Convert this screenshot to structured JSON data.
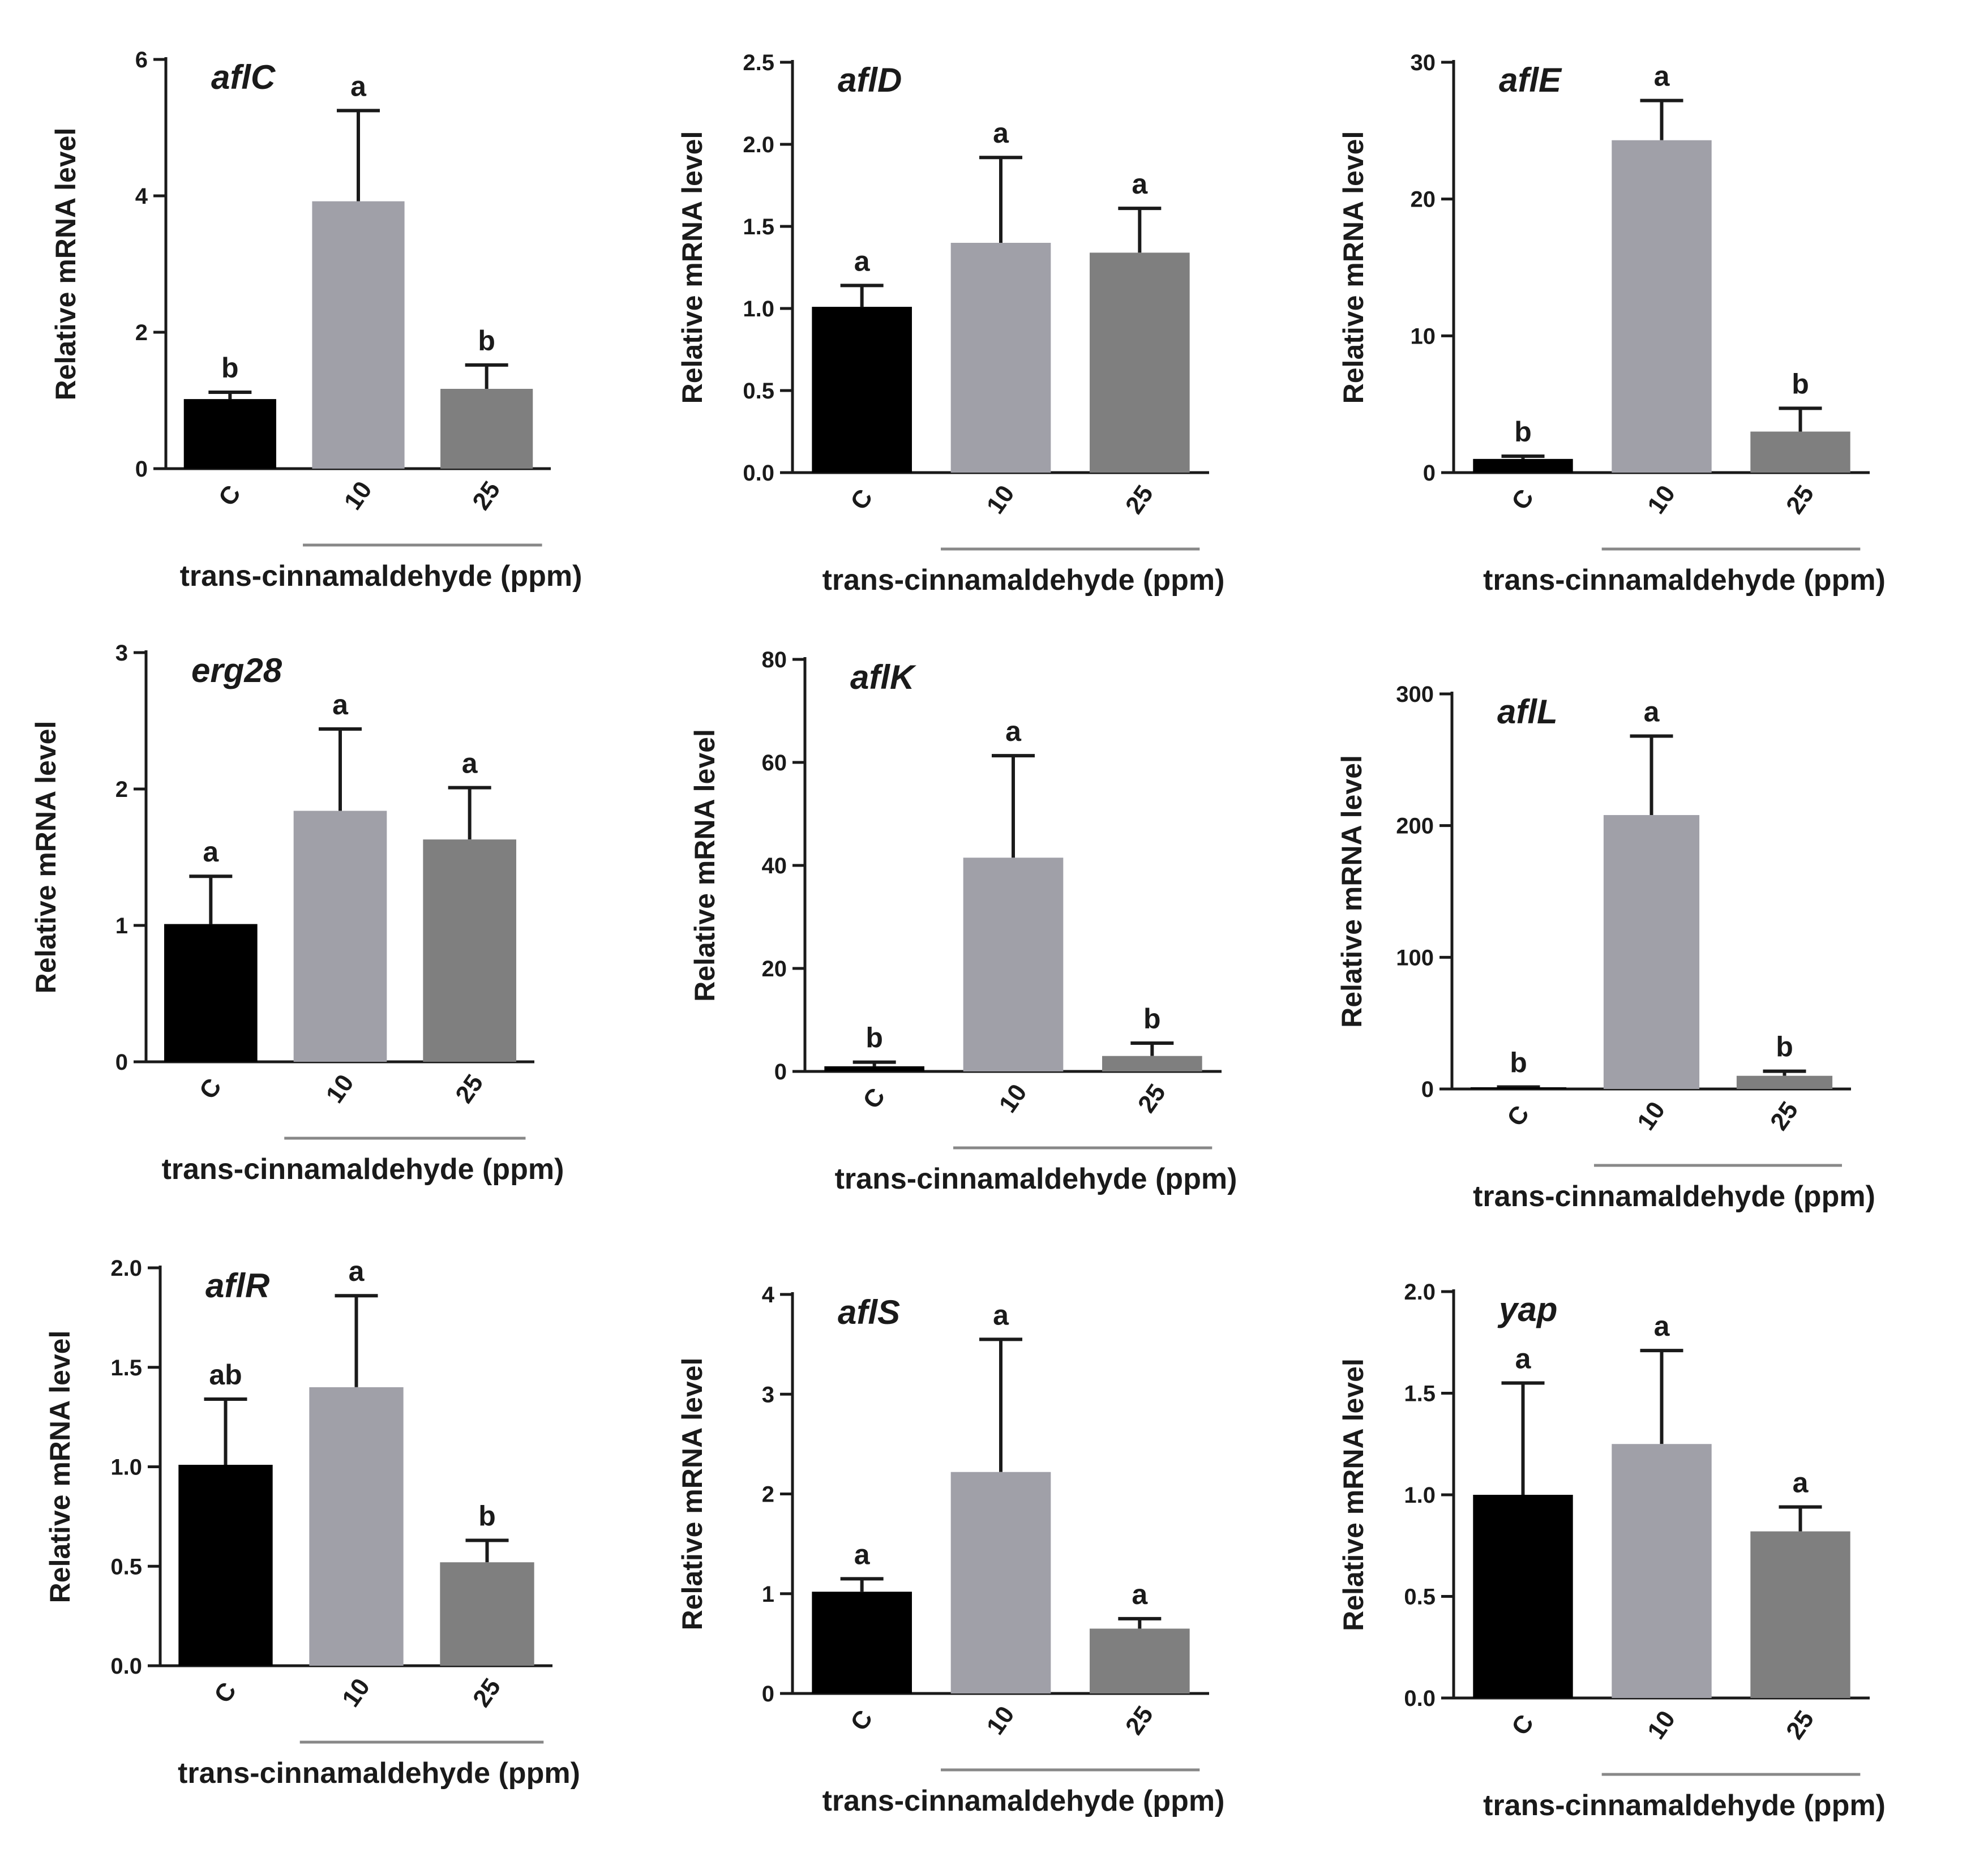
{
  "colors": {
    "C": "#000000",
    "10": "#a0a0a8",
    "25": "#7f7f7f",
    "axis": "#1a1a1a",
    "bracket": "#888888"
  },
  "chart_data": [
    {
      "type": "bar",
      "title": "aflC",
      "ylabel": "Relative mRNA level",
      "xlabel": "trans-cinnamaldehyde (ppm)",
      "categories": [
        "C",
        "10",
        "25"
      ],
      "values": [
        1.02,
        3.92,
        1.17
      ],
      "errors": [
        0.1,
        1.33,
        0.35
      ],
      "significance": [
        "b",
        "a",
        "b"
      ],
      "ylim": [
        0,
        6
      ],
      "yticks": [
        "0",
        "2",
        "4",
        "6"
      ]
    },
    {
      "type": "bar",
      "title": "aflD",
      "ylabel": "Relative mRNA level",
      "xlabel": "trans-cinnamaldehyde (ppm)",
      "categories": [
        "C",
        "10",
        "25"
      ],
      "values": [
        1.01,
        1.4,
        1.34
      ],
      "errors": [
        0.13,
        0.52,
        0.27
      ],
      "significance": [
        "a",
        "a",
        "a"
      ],
      "ylim": [
        0,
        2.5
      ],
      "yticks": [
        "0.0",
        "0.5",
        "1.0",
        "1.5",
        "2.0",
        "2.5"
      ]
    },
    {
      "type": "bar",
      "title": "aflE",
      "ylabel": "Relative mRNA level",
      "xlabel": "trans-cinnamaldehyde (ppm)",
      "categories": [
        "C",
        "10",
        "25"
      ],
      "values": [
        1.0,
        24.3,
        3.0
      ],
      "errors": [
        0.2,
        2.9,
        1.7
      ],
      "significance": [
        "b",
        "a",
        "b"
      ],
      "ylim": [
        0,
        30
      ],
      "yticks": [
        "0",
        "10",
        "20",
        "30"
      ]
    },
    {
      "type": "bar",
      "title": "erg28",
      "ylabel": "Relative mRNA level",
      "xlabel": "trans-cinnamaldehyde (ppm)",
      "categories": [
        "C",
        "10",
        "25"
      ],
      "values": [
        1.01,
        1.84,
        1.63
      ],
      "errors": [
        0.35,
        0.6,
        0.38
      ],
      "significance": [
        "a",
        "a",
        "a"
      ],
      "ylim": [
        0,
        3
      ],
      "yticks": [
        "0",
        "1",
        "2",
        "3"
      ]
    },
    {
      "type": "bar",
      "title": "aflK",
      "ylabel": "Relative mRNA level",
      "xlabel": "trans-cinnamaldehyde (ppm)",
      "categories": [
        "C",
        "10",
        "25"
      ],
      "values": [
        1.0,
        41.5,
        3.0
      ],
      "errors": [
        0.8,
        19.8,
        2.5
      ],
      "significance": [
        "b",
        "a",
        "b"
      ],
      "ylim": [
        0,
        80
      ],
      "yticks": [
        "0",
        "20",
        "40",
        "60",
        "80"
      ]
    },
    {
      "type": "bar",
      "title": "aflL",
      "ylabel": "Relative mRNA level",
      "xlabel": "trans-cinnamaldehyde (ppm)",
      "categories": [
        "C",
        "10",
        "25"
      ],
      "values": [
        1.0,
        208,
        10.0
      ],
      "errors": [
        0.5,
        60,
        3.5
      ],
      "significance": [
        "b",
        "a",
        "b"
      ],
      "ylim": [
        0,
        300
      ],
      "yticks": [
        "0",
        "100",
        "200",
        "300"
      ]
    },
    {
      "type": "bar",
      "title": "aflR",
      "ylabel": "Relative mRNA level",
      "xlabel": "trans-cinnamaldehyde (ppm)",
      "categories": [
        "C",
        "10",
        "25"
      ],
      "values": [
        1.01,
        1.4,
        0.52
      ],
      "errors": [
        0.33,
        0.46,
        0.11
      ],
      "significance": [
        "ab",
        "a",
        "b"
      ],
      "ylim": [
        0,
        2.0
      ],
      "yticks": [
        "0.0",
        "0.5",
        "1.0",
        "1.5",
        "2.0"
      ]
    },
    {
      "type": "bar",
      "title": "aflS",
      "ylabel": "Relative mRNA level",
      "xlabel": "trans-cinnamaldehyde (ppm)",
      "categories": [
        "C",
        "10",
        "25"
      ],
      "values": [
        1.02,
        2.22,
        0.65
      ],
      "errors": [
        0.13,
        1.33,
        0.1
      ],
      "significance": [
        "a",
        "a",
        "a"
      ],
      "ylim": [
        0,
        4
      ],
      "yticks": [
        "0",
        "1",
        "2",
        "3",
        "4"
      ]
    },
    {
      "type": "bar",
      "title": "yap",
      "ylabel": "Relative mRNA level",
      "xlabel": "trans-cinnamaldehyde (ppm)",
      "categories": [
        "C",
        "10",
        "25"
      ],
      "values": [
        1.0,
        1.25,
        0.82
      ],
      "errors": [
        0.55,
        0.46,
        0.12
      ],
      "significance": [
        "a",
        "a",
        "a"
      ],
      "ylim": [
        0,
        2.0
      ],
      "yticks": [
        "0.0",
        "0.5",
        "1.0",
        "1.5",
        "2.0"
      ]
    }
  ]
}
